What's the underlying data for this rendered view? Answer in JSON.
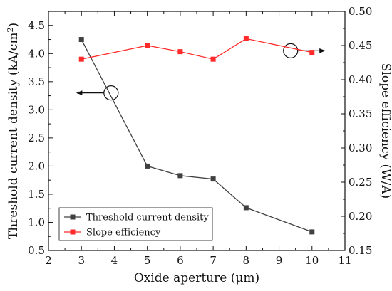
{
  "chart_data": {
    "type": "line",
    "x_axis": {
      "label": "Oxide aperture (μm)",
      "range": [
        2,
        11
      ],
      "ticks": [
        2,
        3,
        4,
        5,
        6,
        7,
        8,
        9,
        10,
        11
      ]
    },
    "y_left_axis": {
      "label": "Threshold current density (kA/cm²)",
      "label_main": "Threshold current density (kA/cm",
      "label_sup": "2",
      "label_end": ")",
      "range": [
        0.5,
        4.75
      ],
      "ticks": [
        "0.5",
        "1.0",
        "1.5",
        "2.0",
        "2.5",
        "3.0",
        "3.5",
        "4.0",
        "4.5"
      ]
    },
    "y_right_axis": {
      "label": "Slope efficiency (W/A)",
      "range": [
        0.15,
        0.5
      ],
      "ticks": [
        "0.15",
        "0.20",
        "0.25",
        "0.30",
        "0.35",
        "0.40",
        "0.45",
        "0.50"
      ]
    },
    "series": [
      {
        "name": "Threshold current density",
        "axis": "left",
        "color": "#404040",
        "marker": "square",
        "x": [
          3,
          5,
          6,
          7,
          8,
          10
        ],
        "y": [
          4.25,
          2.0,
          1.83,
          1.77,
          1.26,
          0.83
        ]
      },
      {
        "name": "Slope efficiency",
        "axis": "right",
        "color": "#ff2a2a",
        "marker": "square",
        "x": [
          3,
          5,
          6,
          7,
          8,
          10
        ],
        "y": [
          0.43,
          0.45,
          0.441,
          0.43,
          0.46,
          0.44
        ]
      }
    ],
    "annotations": [
      {
        "type": "circle-arrow",
        "points_to": "left",
        "x": 3.9,
        "y_left": 3.3
      },
      {
        "type": "circle-arrow",
        "points_to": "right",
        "x": 9.35,
        "y_left": 4.05
      }
    ],
    "legend_position": "bottom-left",
    "grid": false
  }
}
